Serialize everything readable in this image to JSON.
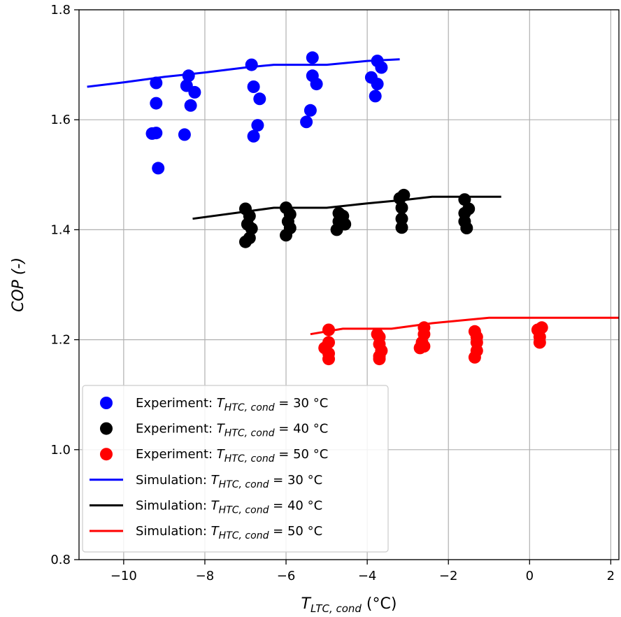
{
  "chart_data": {
    "type": "scatter",
    "xlim": [
      -11.1,
      2.2
    ],
    "ylim": [
      0.8,
      1.8
    ],
    "x_ticks": [
      -10,
      -8,
      -6,
      -4,
      -2,
      0,
      2
    ],
    "y_ticks": [
      0.8,
      1.0,
      1.2,
      1.4,
      1.6,
      1.8
    ],
    "x_tick_labels": [
      "−10",
      "−8",
      "−6",
      "−4",
      "−2",
      "0",
      "2"
    ],
    "y_tick_labels": [
      "0.8",
      "1.0",
      "1.2",
      "1.4",
      "1.6",
      "1.8"
    ],
    "grid": true,
    "legend_position": "lower-left",
    "xlabel": {
      "main": "T",
      "sub": "LTC, cond",
      "rest": " (°C)"
    },
    "ylabel": "COP (-)",
    "experiments": [
      {
        "legend_prefix": "Experiment: ",
        "legend_var": "T",
        "legend_sub": "HTC, cond",
        "legend_suffix": " = 30 °C",
        "color": "#0000ff",
        "points": [
          [
            -9.2,
            1.667
          ],
          [
            -9.2,
            1.63
          ],
          [
            -9.3,
            1.575
          ],
          [
            -9.2,
            1.576
          ],
          [
            -9.15,
            1.512
          ],
          [
            -8.4,
            1.68
          ],
          [
            -8.45,
            1.662
          ],
          [
            -8.25,
            1.65
          ],
          [
            -8.35,
            1.626
          ],
          [
            -8.5,
            1.573
          ],
          [
            -6.85,
            1.7
          ],
          [
            -6.8,
            1.66
          ],
          [
            -6.65,
            1.638
          ],
          [
            -6.7,
            1.59
          ],
          [
            -6.8,
            1.57
          ],
          [
            -5.35,
            1.713
          ],
          [
            -5.35,
            1.68
          ],
          [
            -5.25,
            1.665
          ],
          [
            -5.4,
            1.617
          ],
          [
            -5.5,
            1.596
          ],
          [
            -3.75,
            1.707
          ],
          [
            -3.65,
            1.695
          ],
          [
            -3.9,
            1.677
          ],
          [
            -3.75,
            1.665
          ],
          [
            -3.8,
            1.643
          ]
        ]
      },
      {
        "legend_prefix": "Experiment: ",
        "legend_var": "T",
        "legend_sub": "HTC, cond",
        "legend_suffix": " = 40 °C",
        "color": "#000000",
        "points": [
          [
            -7.0,
            1.438
          ],
          [
            -6.9,
            1.425
          ],
          [
            -6.95,
            1.41
          ],
          [
            -6.85,
            1.402
          ],
          [
            -6.9,
            1.385
          ],
          [
            -7.0,
            1.378
          ],
          [
            -6.0,
            1.44
          ],
          [
            -5.9,
            1.428
          ],
          [
            -5.95,
            1.415
          ],
          [
            -5.9,
            1.403
          ],
          [
            -6.0,
            1.39
          ],
          [
            -4.7,
            1.43
          ],
          [
            -4.6,
            1.425
          ],
          [
            -4.7,
            1.415
          ],
          [
            -4.55,
            1.41
          ],
          [
            -4.75,
            1.4
          ],
          [
            -3.1,
            1.463
          ],
          [
            -3.2,
            1.457
          ],
          [
            -3.15,
            1.44
          ],
          [
            -3.15,
            1.42
          ],
          [
            -3.15,
            1.404
          ],
          [
            -1.6,
            1.455
          ],
          [
            -1.5,
            1.438
          ],
          [
            -1.6,
            1.43
          ],
          [
            -1.6,
            1.415
          ],
          [
            -1.55,
            1.403
          ]
        ]
      },
      {
        "legend_prefix": "Experiment: ",
        "legend_var": "T",
        "legend_sub": "HTC, cond",
        "legend_suffix": " = 50 °C",
        "color": "#ff0000",
        "points": [
          [
            -4.95,
            1.218
          ],
          [
            -4.95,
            1.195
          ],
          [
            -5.05,
            1.185
          ],
          [
            -4.95,
            1.175
          ],
          [
            -4.95,
            1.165
          ],
          [
            -3.75,
            1.21
          ],
          [
            -3.7,
            1.205
          ],
          [
            -3.7,
            1.192
          ],
          [
            -3.65,
            1.18
          ],
          [
            -3.7,
            1.17
          ],
          [
            -3.7,
            1.165
          ],
          [
            -2.6,
            1.222
          ],
          [
            -2.6,
            1.21
          ],
          [
            -2.65,
            1.195
          ],
          [
            -2.6,
            1.188
          ],
          [
            -2.7,
            1.185
          ],
          [
            -1.35,
            1.215
          ],
          [
            -1.3,
            1.205
          ],
          [
            -1.3,
            1.195
          ],
          [
            -1.3,
            1.18
          ],
          [
            -1.35,
            1.168
          ],
          [
            0.2,
            1.218
          ],
          [
            0.3,
            1.222
          ],
          [
            0.25,
            1.205
          ],
          [
            0.25,
            1.195
          ]
        ]
      }
    ],
    "simulations": [
      {
        "legend_prefix": "Simulation: ",
        "legend_var": "T",
        "legend_sub": "HTC, cond",
        "legend_suffix": " = 30 °C",
        "color": "#0000ff",
        "x": [
          -10.9,
          -10.0,
          -9.0,
          -8.0,
          -7.0,
          -6.3,
          -5.0,
          -4.0,
          -3.2
        ],
        "y": [
          1.66,
          1.668,
          1.678,
          1.686,
          1.695,
          1.7,
          1.7,
          1.707,
          1.71
        ]
      },
      {
        "legend_prefix": "Simulation: ",
        "legend_var": "T",
        "legend_sub": "HTC, cond",
        "legend_suffix": " = 40 °C",
        "color": "#000000",
        "x": [
          -8.3,
          -7.0,
          -6.3,
          -5.0,
          -4.0,
          -3.0,
          -2.4,
          -0.7
        ],
        "y": [
          1.42,
          1.433,
          1.44,
          1.44,
          1.448,
          1.455,
          1.46,
          1.46
        ]
      },
      {
        "legend_prefix": "Simulation: ",
        "legend_var": "T",
        "legend_sub": "HTC, cond",
        "legend_suffix": " = 50 °C",
        "color": "#ff0000",
        "x": [
          -5.4,
          -4.6,
          -3.4,
          -2.4,
          -1.0,
          0.0,
          2.2
        ],
        "y": [
          1.21,
          1.22,
          1.22,
          1.23,
          1.24,
          1.24,
          1.24
        ]
      }
    ]
  }
}
